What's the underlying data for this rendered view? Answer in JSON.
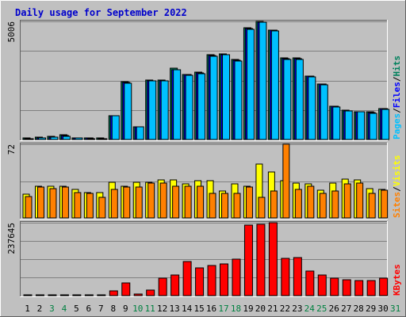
{
  "title": "Daily usage for September 2022",
  "colors": {
    "frame": "#c0c0c0",
    "plot_bg": "#c0c0c0",
    "title": "#0000cc",
    "pages": "#00c0ff",
    "files": "#0000ff",
    "hits": "#00805c",
    "visits": "#ffff00",
    "sites": "#ff8000",
    "kbytes": "#ff0000",
    "weekend": "#008040",
    "grid": "#808080"
  },
  "chart_data": [
    {
      "type": "bar",
      "name": "hits-files-pages",
      "legend": [
        "Pages",
        "/",
        "Files",
        "/",
        "Hits"
      ],
      "ymax": 5006,
      "ymax_label": "5006",
      "categories": [
        "1",
        "2",
        "3",
        "4",
        "5",
        "6",
        "7",
        "8",
        "9",
        "10",
        "11",
        "12",
        "13",
        "14",
        "15",
        "16",
        "17",
        "18",
        "19",
        "20",
        "21",
        "22",
        "23",
        "24",
        "25",
        "26",
        "27",
        "28",
        "29",
        "30"
      ],
      "series": [
        {
          "name": "Hits",
          "values": [
            70,
            90,
            130,
            190,
            80,
            70,
            60,
            1020,
            2450,
            550,
            2520,
            2510,
            3010,
            2750,
            2840,
            3580,
            3630,
            3390,
            4730,
            5006,
            4640,
            3450,
            3450,
            2700,
            2360,
            1420,
            1230,
            1190,
            1160,
            1320
          ]
        },
        {
          "name": "Files",
          "values": [
            50,
            70,
            110,
            160,
            70,
            60,
            50,
            1020,
            2420,
            550,
            2500,
            2490,
            2970,
            2750,
            2810,
            3560,
            3610,
            3360,
            4700,
            4980,
            4620,
            3420,
            3420,
            2680,
            2340,
            1400,
            1220,
            1180,
            1140,
            1300
          ]
        },
        {
          "name": "Pages",
          "values": [
            40,
            60,
            90,
            140,
            60,
            50,
            40,
            1000,
            2400,
            530,
            2480,
            2480,
            2950,
            2730,
            2790,
            3540,
            3600,
            3340,
            4680,
            4960,
            4600,
            3400,
            3400,
            2660,
            2320,
            1380,
            1200,
            1170,
            1120,
            1280
          ]
        }
      ]
    },
    {
      "type": "bar",
      "name": "visits-sites",
      "legend": [
        "Sites",
        "/",
        "Visits"
      ],
      "ymax": 72,
      "ymax_label": "72",
      "categories": [
        "1",
        "2",
        "3",
        "4",
        "5",
        "6",
        "7",
        "8",
        "9",
        "10",
        "11",
        "12",
        "13",
        "14",
        "15",
        "16",
        "17",
        "18",
        "19",
        "20",
        "21",
        "22",
        "23",
        "24",
        "25",
        "26",
        "27",
        "28",
        "29",
        "30"
      ],
      "series": [
        {
          "name": "Visits",
          "values": [
            23,
            31,
            31,
            31,
            28,
            25,
            25,
            35,
            31,
            35,
            35,
            37,
            37,
            33,
            36,
            36,
            26,
            33,
            31,
            53,
            45,
            36,
            34,
            33,
            27,
            34,
            38,
            37,
            29,
            28
          ]
        },
        {
          "name": "Sites",
          "values": [
            21,
            30,
            29,
            30,
            25,
            24,
            20,
            28,
            30,
            30,
            34,
            34,
            31,
            31,
            31,
            24,
            24,
            24,
            30,
            20,
            26,
            72,
            28,
            31,
            24,
            26,
            33,
            34,
            24,
            27
          ]
        }
      ]
    },
    {
      "type": "bar",
      "name": "kbytes",
      "legend": [
        "KBytes"
      ],
      "ymax": 237645,
      "ymax_label": "237645",
      "categories": [
        "1",
        "2",
        "3",
        "4",
        "5",
        "6",
        "7",
        "8",
        "9",
        "10",
        "11",
        "12",
        "13",
        "14",
        "15",
        "16",
        "17",
        "18",
        "19",
        "20",
        "21",
        "22",
        "23",
        "24",
        "25",
        "26",
        "27",
        "28",
        "29",
        "30"
      ],
      "series": [
        {
          "name": "KBytes",
          "values": [
            2000,
            2000,
            2000,
            2000,
            2000,
            2000,
            2000,
            15000,
            42000,
            5000,
            18000,
            58000,
            68000,
            112000,
            90000,
            98000,
            104000,
            118000,
            230000,
            232000,
            237645,
            122000,
            124000,
            80000,
            68000,
            58000,
            52000,
            50000,
            48000,
            56000
          ]
        }
      ]
    }
  ],
  "x_labels": [
    "1",
    "2",
    "3",
    "4",
    "5",
    "6",
    "7",
    "8",
    "9",
    "10",
    "11",
    "12",
    "13",
    "14",
    "15",
    "16",
    "17",
    "18",
    "19",
    "20",
    "21",
    "22",
    "23",
    "24",
    "25",
    "26",
    "27",
    "28",
    "29",
    "30",
    "31"
  ],
  "weekend_days": [
    3,
    4,
    10,
    11,
    17,
    18,
    24,
    25,
    31
  ]
}
